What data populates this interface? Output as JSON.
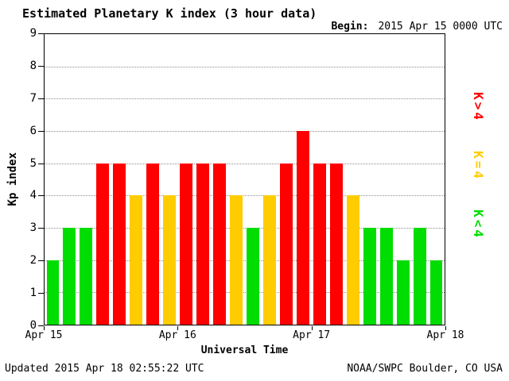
{
  "header": {
    "title": "Estimated Planetary K index (3 hour data)",
    "begin_label": "Begin:",
    "begin_value": "2015 Apr 15 0000 UTC"
  },
  "footer": {
    "updated": "Updated 2015 Apr 18 02:55:22 UTC",
    "credit": "NOAA/SWPC Boulder, CO USA"
  },
  "chart_data": {
    "type": "bar",
    "title": "Estimated Planetary K index (3 hour data)",
    "begin": "2015 Apr 15 0000 UTC",
    "interval_hours": 3,
    "ylabel": "Kp index",
    "xlabel": "Universal Time",
    "ylim": [
      0,
      9
    ],
    "y_ticks": [
      0,
      1,
      2,
      3,
      4,
      5,
      6,
      7,
      8,
      9
    ],
    "x_ticks": [
      "Apr 15",
      "Apr 16",
      "Apr 17",
      "Apr 18"
    ],
    "values": [
      2,
      3,
      3,
      5,
      5,
      4,
      5,
      4,
      5,
      5,
      5,
      4,
      3,
      4,
      5,
      6,
      5,
      5,
      4,
      3,
      3,
      2,
      3,
      2
    ],
    "colors": {
      "low": "#00dd00",
      "mid": "#ffcc00",
      "high": "#ff0000"
    },
    "color_rule": {
      "threshold": 4,
      "low": "K<4",
      "mid": "K=4",
      "high": "K>4"
    },
    "legend": [
      {
        "label": "K>4",
        "color": "#ff0000"
      },
      {
        "label": "K=4",
        "color": "#ffcc00"
      },
      {
        "label": "K<4",
        "color": "#00dd00"
      }
    ],
    "legend_position": "right",
    "grid": "dotted-horizontal"
  }
}
